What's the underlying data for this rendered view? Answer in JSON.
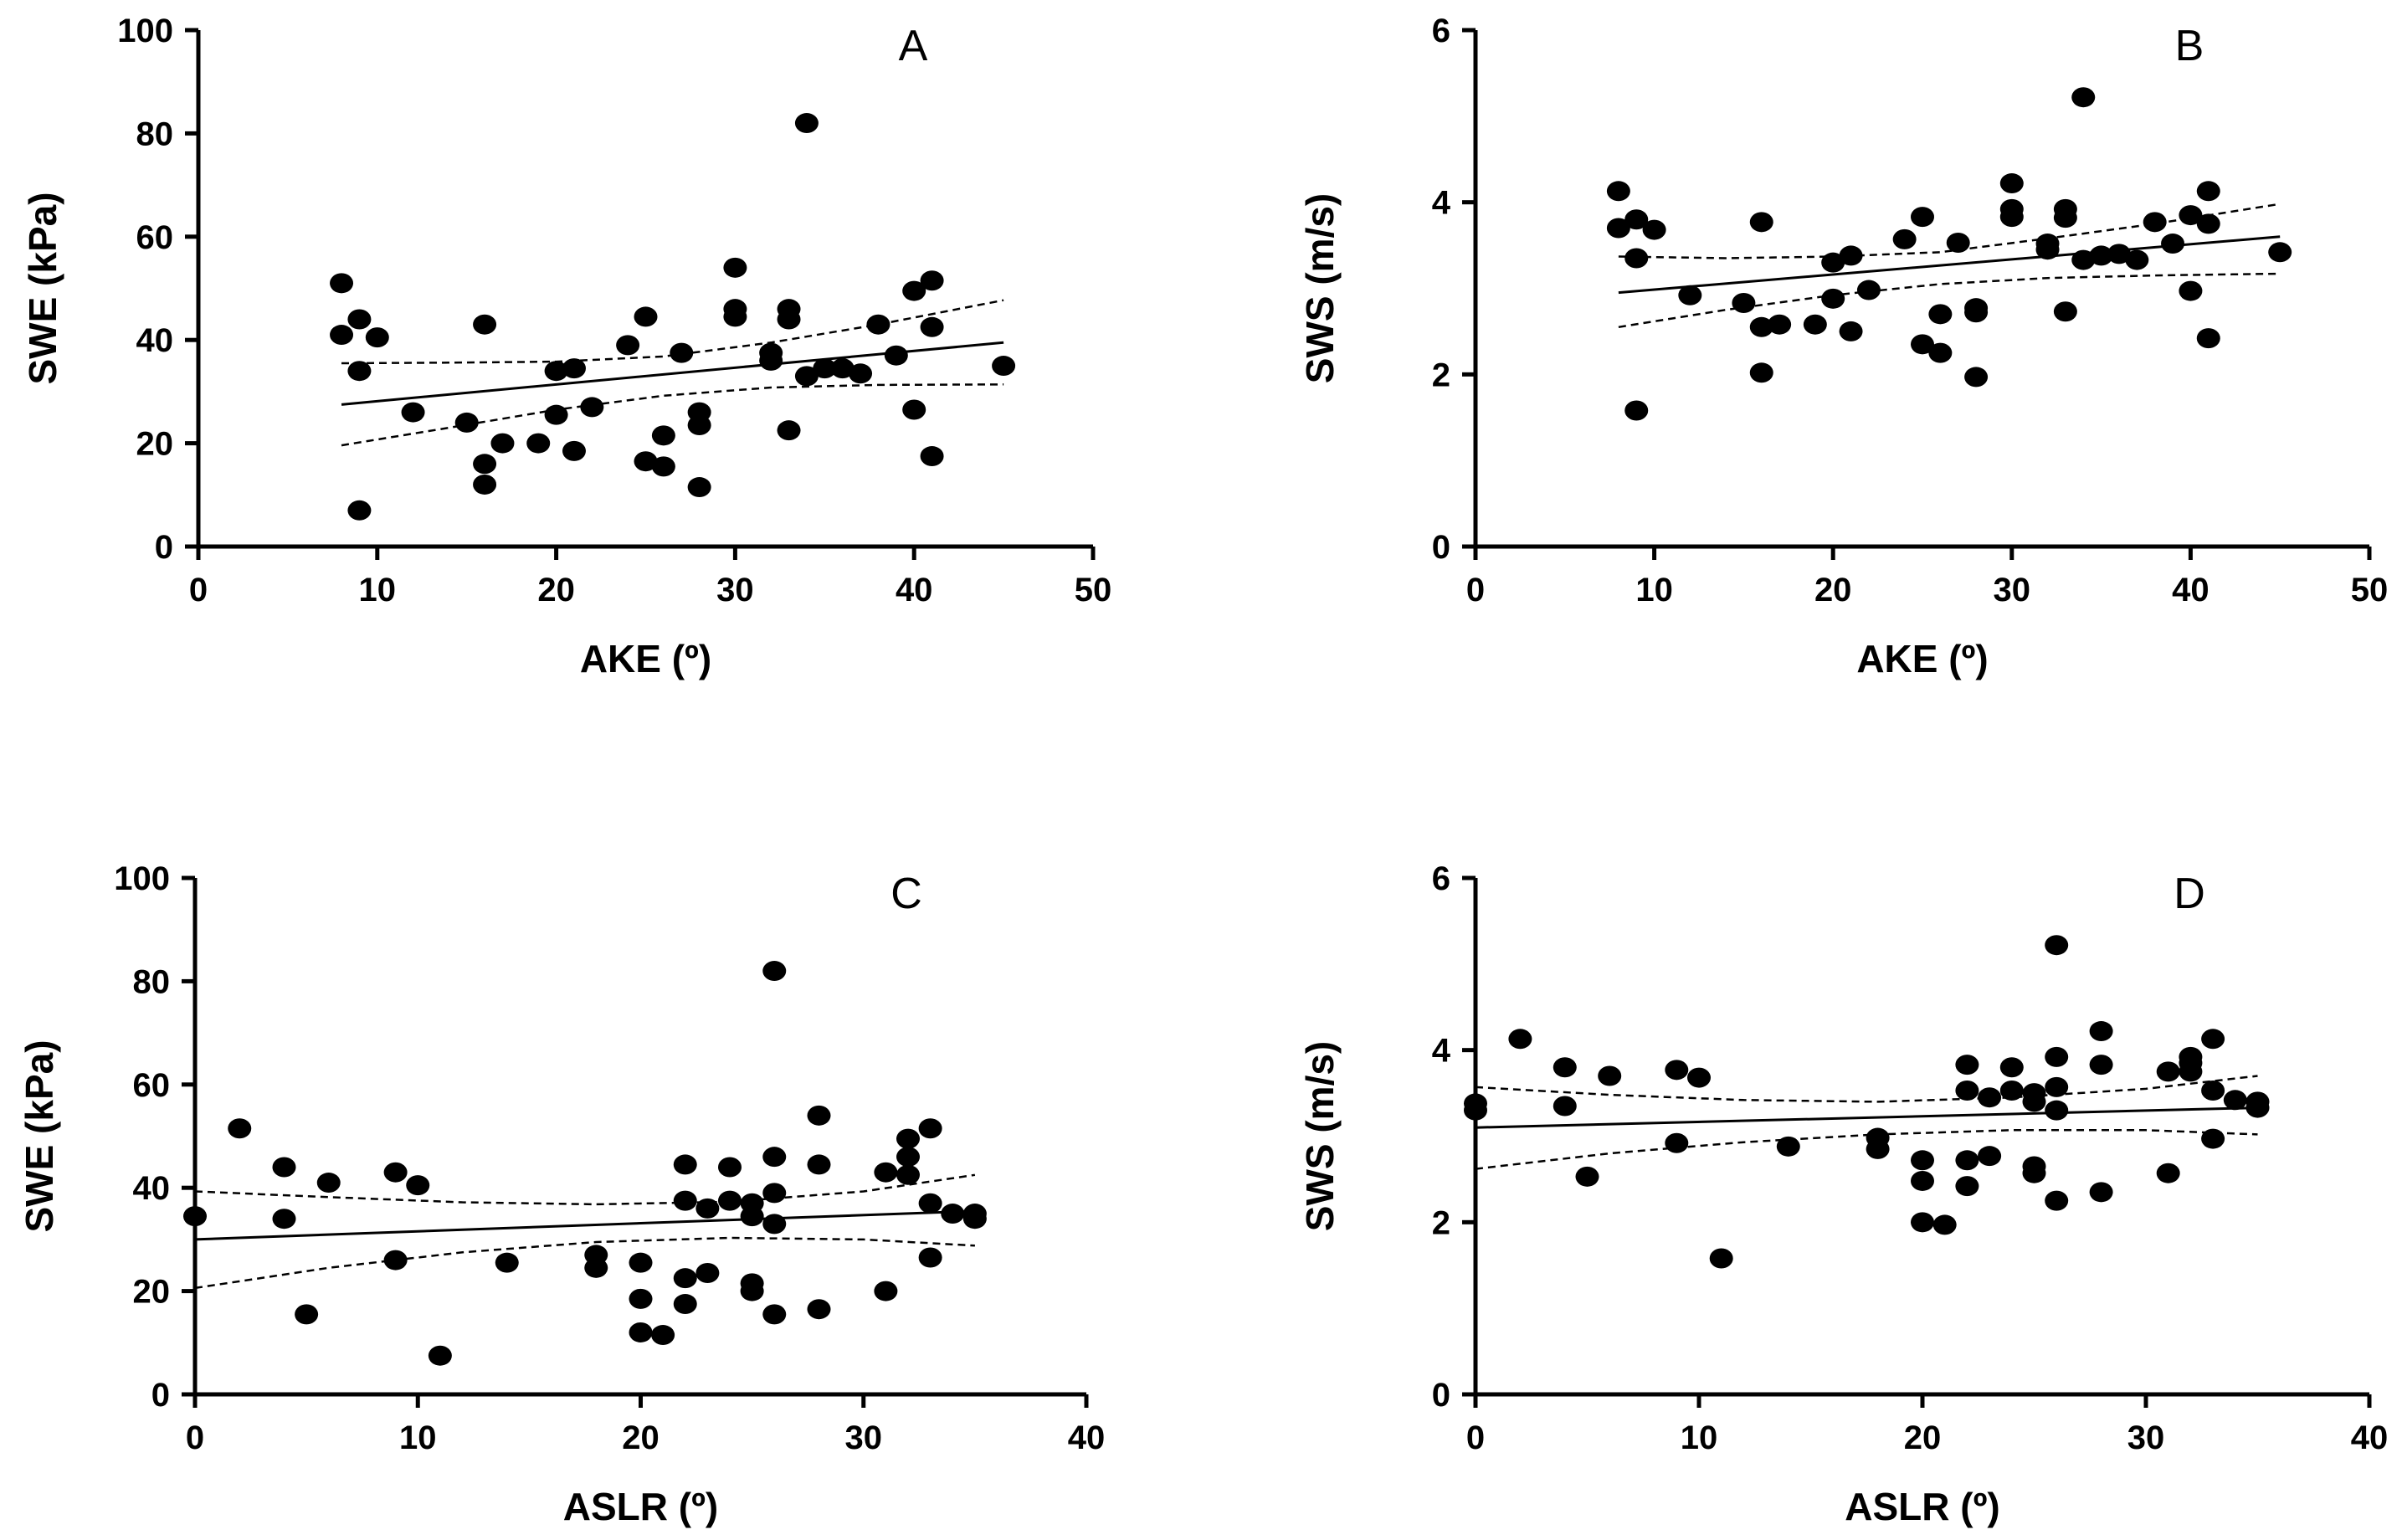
{
  "chart_data": [
    {
      "type": "scatter",
      "panel_label": "A",
      "xlabel": "AKE (º)",
      "ylabel": "SWE (kPa)",
      "xlim": [
        0,
        50
      ],
      "ylim": [
        0,
        100
      ],
      "xticks": [
        0,
        10,
        20,
        30,
        40,
        50
      ],
      "yticks": [
        0,
        20,
        40,
        60,
        80,
        100
      ],
      "points": [
        [
          8,
          51
        ],
        [
          8,
          41
        ],
        [
          9,
          44
        ],
        [
          9,
          34
        ],
        [
          9,
          7
        ],
        [
          10,
          40.5
        ],
        [
          12,
          26
        ],
        [
          15,
          24
        ],
        [
          16,
          43
        ],
        [
          16,
          16
        ],
        [
          16,
          12
        ],
        [
          17,
          20
        ],
        [
          19,
          20
        ],
        [
          20,
          34
        ],
        [
          20,
          25.5
        ],
        [
          21,
          34.5
        ],
        [
          21,
          18.5
        ],
        [
          22,
          27
        ],
        [
          24,
          39
        ],
        [
          25,
          44.5
        ],
        [
          25,
          16.5
        ],
        [
          26,
          21.5
        ],
        [
          26,
          15.5
        ],
        [
          27,
          37.5
        ],
        [
          28,
          26
        ],
        [
          28,
          23.5
        ],
        [
          28,
          11.5
        ],
        [
          30,
          54
        ],
        [
          30,
          46
        ],
        [
          30,
          44.5
        ],
        [
          32,
          37.5
        ],
        [
          32,
          36
        ],
        [
          33,
          46
        ],
        [
          33,
          44
        ],
        [
          33,
          22.5
        ],
        [
          34,
          82
        ],
        [
          34,
          33
        ],
        [
          35,
          34.5
        ],
        [
          36,
          34.5
        ],
        [
          37,
          33.5
        ],
        [
          38,
          43
        ],
        [
          39,
          37
        ],
        [
          40,
          49.5
        ],
        [
          40,
          26.5
        ],
        [
          41,
          51.5
        ],
        [
          41,
          42.5
        ],
        [
          41,
          17.5
        ],
        [
          45,
          35
        ]
      ],
      "fit": {
        "x": [
          8,
          45
        ],
        "y": [
          27.5,
          39.5
        ]
      },
      "ci_upper": {
        "x": [
          8,
          14,
          20,
          26,
          32,
          38,
          45
        ],
        "y": [
          35.5,
          35.6,
          35.8,
          36.8,
          39.5,
          43,
          47.7
        ]
      },
      "ci_lower": {
        "x": [
          8,
          14,
          20,
          26,
          32,
          38,
          45
        ],
        "y": [
          19.6,
          23,
          26.5,
          29.2,
          30.8,
          31.3,
          31.4
        ]
      }
    },
    {
      "type": "scatter",
      "panel_label": "B",
      "xlabel": "AKE (º)",
      "ylabel": "SWS (m/s)",
      "xlim": [
        0,
        50
      ],
      "ylim": [
        0,
        6
      ],
      "xticks": [
        0,
        10,
        20,
        30,
        40,
        50
      ],
      "yticks": [
        0,
        2,
        4,
        6
      ],
      "points": [
        [
          8,
          4.13
        ],
        [
          8,
          3.7
        ],
        [
          9,
          3.8
        ],
        [
          9,
          3.35
        ],
        [
          9,
          1.58
        ],
        [
          10,
          3.68
        ],
        [
          12,
          2.92
        ],
        [
          15,
          2.83
        ],
        [
          16,
          3.77
        ],
        [
          16,
          2.55
        ],
        [
          16,
          2.02
        ],
        [
          17,
          2.58
        ],
        [
          19,
          2.58
        ],
        [
          20,
          3.3
        ],
        [
          20,
          2.88
        ],
        [
          21,
          3.38
        ],
        [
          21,
          2.5
        ],
        [
          22,
          2.98
        ],
        [
          24,
          3.57
        ],
        [
          25,
          3.83
        ],
        [
          25,
          2.35
        ],
        [
          26,
          2.7
        ],
        [
          26,
          2.25
        ],
        [
          27,
          3.53
        ],
        [
          28,
          2.77
        ],
        [
          28,
          2.72
        ],
        [
          28,
          1.97
        ],
        [
          30,
          4.22
        ],
        [
          30,
          3.92
        ],
        [
          30,
          3.83
        ],
        [
          32,
          3.52
        ],
        [
          32,
          3.45
        ],
        [
          33,
          3.92
        ],
        [
          33,
          3.82
        ],
        [
          33,
          2.73
        ],
        [
          34,
          5.22
        ],
        [
          34,
          3.33
        ],
        [
          35,
          3.38
        ],
        [
          36,
          3.4
        ],
        [
          37,
          3.33
        ],
        [
          38,
          3.77
        ],
        [
          39,
          3.52
        ],
        [
          40,
          3.85
        ],
        [
          40,
          2.97
        ],
        [
          41,
          4.13
        ],
        [
          41,
          3.75
        ],
        [
          41,
          2.42
        ],
        [
          45,
          3.42
        ]
      ],
      "fit": {
        "x": [
          8,
          45
        ],
        "y": [
          2.95,
          3.6
        ]
      },
      "ci_upper": {
        "x": [
          8,
          14,
          20,
          26,
          32,
          38,
          45
        ],
        "y": [
          3.37,
          3.35,
          3.37,
          3.42,
          3.58,
          3.75,
          3.98
        ]
      },
      "ci_lower": {
        "x": [
          8,
          14,
          20,
          26,
          32,
          38,
          45
        ],
        "y": [
          2.55,
          2.75,
          2.92,
          3.05,
          3.12,
          3.15,
          3.17
        ]
      }
    },
    {
      "type": "scatter",
      "panel_label": "C",
      "xlabel": "ASLR (º)",
      "ylabel": "SWE (kPa)",
      "xlim": [
        0,
        40
      ],
      "ylim": [
        0,
        100
      ],
      "xticks": [
        0,
        10,
        20,
        30,
        40
      ],
      "yticks": [
        0,
        20,
        40,
        60,
        80,
        100
      ],
      "points": [
        [
          0,
          34.5
        ],
        [
          2,
          51.5
        ],
        [
          4,
          44
        ],
        [
          4,
          34
        ],
        [
          5,
          15.5
        ],
        [
          6,
          41
        ],
        [
          9,
          43
        ],
        [
          9,
          26
        ],
        [
          10,
          40.5
        ],
        [
          11,
          7.5
        ],
        [
          14,
          25.5
        ],
        [
          18,
          27
        ],
        [
          18,
          24.5
        ],
        [
          20,
          25.5
        ],
        [
          20,
          18.5
        ],
        [
          20,
          12
        ],
        [
          21,
          11.5
        ],
        [
          22,
          44.5
        ],
        [
          22,
          37.5
        ],
        [
          22,
          22.5
        ],
        [
          22,
          17.5
        ],
        [
          23,
          36
        ],
        [
          23,
          23.5
        ],
        [
          24,
          44
        ],
        [
          24,
          37.5
        ],
        [
          25,
          37
        ],
        [
          25,
          34.5
        ],
        [
          25,
          21.5
        ],
        [
          25,
          20
        ],
        [
          26,
          82
        ],
        [
          26,
          46
        ],
        [
          26,
          39
        ],
        [
          26,
          33
        ],
        [
          26,
          15.5
        ],
        [
          28,
          54
        ],
        [
          28,
          44.5
        ],
        [
          28,
          16.5
        ],
        [
          31,
          43
        ],
        [
          31,
          20
        ],
        [
          32,
          49.5
        ],
        [
          32,
          46
        ],
        [
          32,
          42.5
        ],
        [
          33,
          51.5
        ],
        [
          33,
          37
        ],
        [
          33,
          26.5
        ],
        [
          34,
          35
        ],
        [
          35,
          35
        ],
        [
          35,
          34
        ]
      ],
      "fit": {
        "x": [
          0,
          35
        ],
        "y": [
          30,
          35.5
        ]
      },
      "ci_upper": {
        "x": [
          0,
          6,
          12,
          18,
          24,
          30,
          35
        ],
        "y": [
          39.3,
          38.2,
          37.2,
          36.8,
          37.3,
          39.3,
          42.5
        ]
      },
      "ci_lower": {
        "x": [
          0,
          6,
          12,
          18,
          24,
          30,
          35
        ],
        "y": [
          20.6,
          24.5,
          27.5,
          29.5,
          30.3,
          30,
          28.8
        ]
      }
    },
    {
      "type": "scatter",
      "panel_label": "D",
      "xlabel": "ASLR (º)",
      "ylabel": "SWS (m/s)",
      "xlim": [
        0,
        40
      ],
      "ylim": [
        0,
        6
      ],
      "xticks": [
        0,
        10,
        20,
        30,
        40
      ],
      "yticks": [
        0,
        2,
        4,
        6
      ],
      "points": [
        [
          0,
          3.38
        ],
        [
          0,
          3.3
        ],
        [
          2,
          4.13
        ],
        [
          4,
          3.8
        ],
        [
          4,
          3.35
        ],
        [
          5,
          2.53
        ],
        [
          6,
          3.7
        ],
        [
          9,
          3.77
        ],
        [
          9,
          2.92
        ],
        [
          10,
          3.68
        ],
        [
          11,
          1.58
        ],
        [
          14,
          2.88
        ],
        [
          18,
          2.98
        ],
        [
          18,
          2.85
        ],
        [
          20,
          2.72
        ],
        [
          20,
          2.48
        ],
        [
          20,
          2.0
        ],
        [
          21,
          1.97
        ],
        [
          22,
          3.83
        ],
        [
          22,
          3.53
        ],
        [
          22,
          2.72
        ],
        [
          22,
          2.42
        ],
        [
          23,
          3.45
        ],
        [
          23,
          2.77
        ],
        [
          24,
          3.8
        ],
        [
          24,
          3.53
        ],
        [
          25,
          3.5
        ],
        [
          25,
          3.4
        ],
        [
          25,
          2.65
        ],
        [
          25,
          2.57
        ],
        [
          26,
          5.22
        ],
        [
          26,
          3.92
        ],
        [
          26,
          3.57
        ],
        [
          26,
          3.3
        ],
        [
          26,
          2.25
        ],
        [
          28,
          4.22
        ],
        [
          28,
          3.83
        ],
        [
          28,
          2.35
        ],
        [
          31,
          3.75
        ],
        [
          31,
          2.57
        ],
        [
          32,
          3.92
        ],
        [
          32,
          3.85
        ],
        [
          32,
          3.75
        ],
        [
          33,
          4.13
        ],
        [
          33,
          3.53
        ],
        [
          33,
          2.97
        ],
        [
          34,
          3.42
        ],
        [
          35,
          3.4
        ],
        [
          35,
          3.33
        ]
      ],
      "fit": {
        "x": [
          0,
          35
        ],
        "y": [
          3.1,
          3.33
        ]
      },
      "ci_upper": {
        "x": [
          0,
          6,
          12,
          18,
          24,
          30,
          35
        ],
        "y": [
          3.57,
          3.48,
          3.42,
          3.4,
          3.45,
          3.55,
          3.7
        ]
      },
      "ci_lower": {
        "x": [
          0,
          6,
          12,
          18,
          24,
          30,
          35
        ],
        "y": [
          2.62,
          2.8,
          2.93,
          3.02,
          3.07,
          3.07,
          3.02
        ]
      }
    }
  ]
}
